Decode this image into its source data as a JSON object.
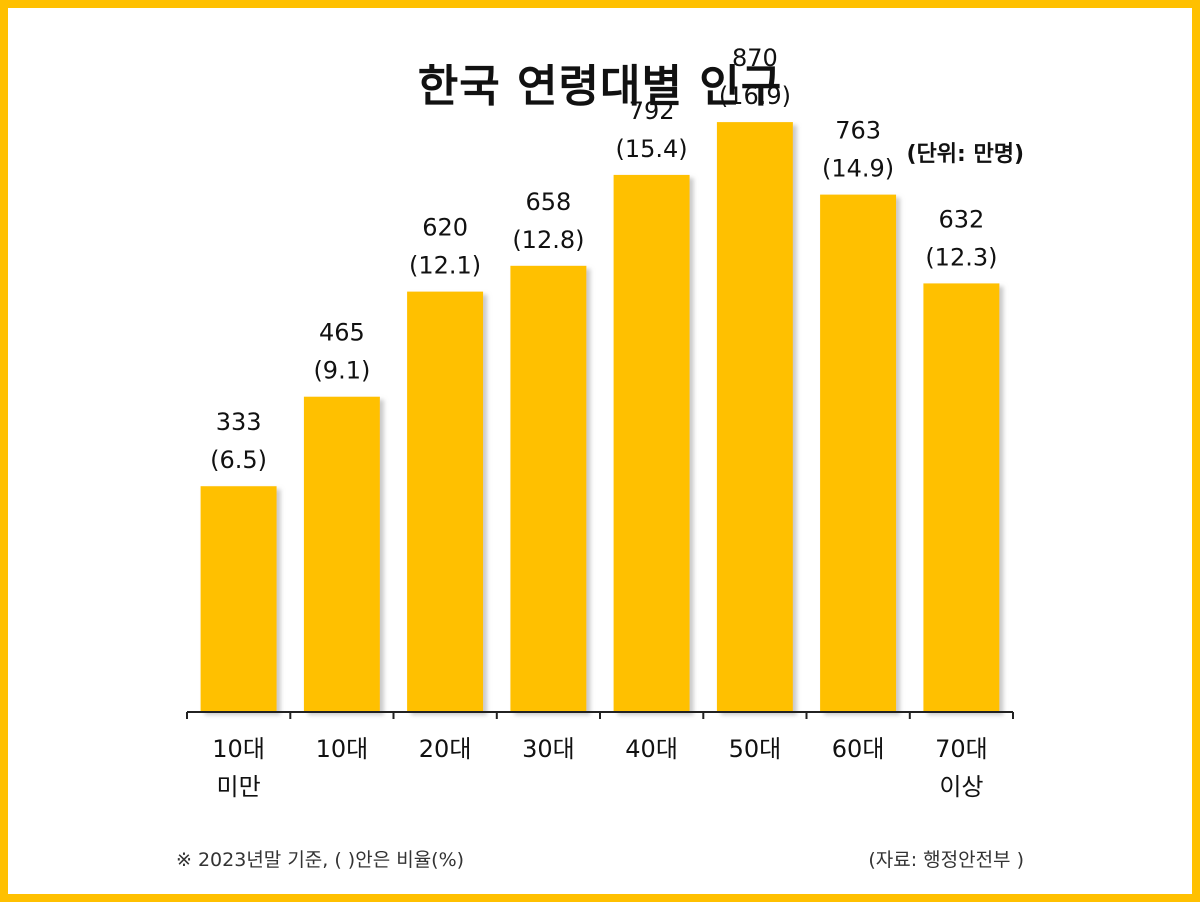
{
  "title": "한국 연령대별 인구",
  "unit_note": "(단위: 만명)",
  "footnote": "※ 2023년말 기준, ( )안은 비율(%)",
  "source": "(자료: 행정안전부 )",
  "colors": {
    "bar": "#FFC000",
    "frame": "#FFC000",
    "shadow": "#BDBDBD"
  },
  "chart_data": {
    "type": "bar",
    "title": "한국 연령대별 인구",
    "unit": "(단위: 만명)",
    "categories": [
      [
        "10대",
        "미만"
      ],
      [
        "10대"
      ],
      [
        "20대"
      ],
      [
        "30대"
      ],
      [
        "40대"
      ],
      [
        "50대"
      ],
      [
        "60대"
      ],
      [
        "70대",
        "이상"
      ]
    ],
    "values": [
      333,
      465,
      620,
      658,
      792,
      870,
      763,
      632
    ],
    "percent_labels": [
      "(6.5)",
      "(9.1)",
      "(12.1)",
      "(12.8)",
      "(15.4)",
      "(16.9)",
      "(14.9)",
      "(12.3)"
    ],
    "ylim": [
      0,
      1050
    ],
    "grid": false,
    "legend": "none"
  }
}
